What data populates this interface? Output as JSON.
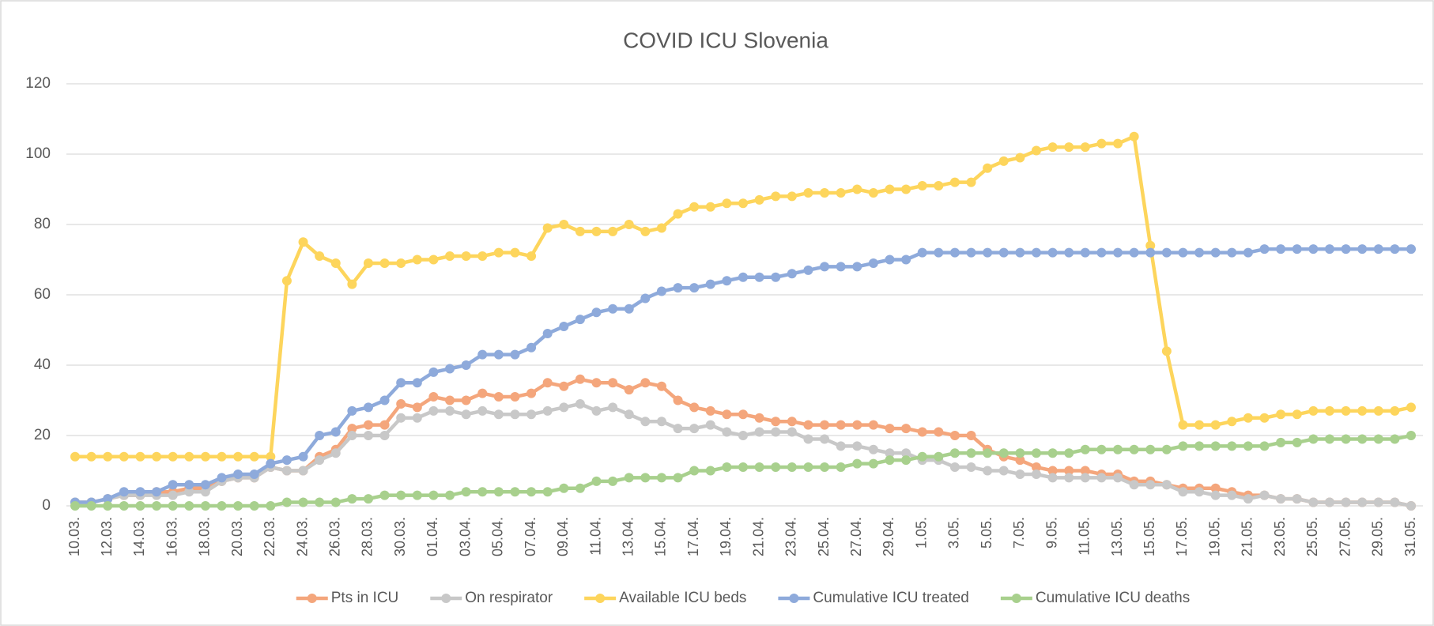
{
  "chart_data": {
    "type": "line",
    "title": "COVID ICU Slovenia",
    "categories": [
      "10.03.",
      null,
      "12.03.",
      null,
      "14.03.",
      null,
      "16.03.",
      null,
      "18.03.",
      null,
      "20.03.",
      null,
      "22.03.",
      null,
      "24.03.",
      null,
      "26.03.",
      null,
      "28.03.",
      null,
      "30.03.",
      null,
      "01.04.",
      null,
      "03.04.",
      null,
      "05.04.",
      null,
      "07.04.",
      null,
      "09.04.",
      null,
      "11.04.",
      null,
      "13.04.",
      null,
      "15.04.",
      null,
      "17.04.",
      null,
      "19.04.",
      null,
      "21.04.",
      null,
      "23.04.",
      null,
      "25.04.",
      null,
      "27.04.",
      null,
      "29.04.",
      null,
      "1.05.",
      null,
      "3.05.",
      null,
      "5.05.",
      null,
      "7.05.",
      null,
      "9.05.",
      null,
      "11.05.",
      null,
      "13.05.",
      null,
      "15.05.",
      null,
      "17.05.",
      null,
      "19.05.",
      null,
      "21.05.",
      null,
      "23.05.",
      null,
      "25.05.",
      null,
      "27.05.",
      null,
      "29.05.",
      null,
      "31.05."
    ],
    "series": [
      {
        "name": "Pts in ICU",
        "color": "#f4a67c",
        "values": [
          1,
          1,
          2,
          3,
          3,
          4,
          4,
          5,
          5,
          7,
          8,
          8,
          11,
          10,
          10,
          14,
          16,
          22,
          23,
          23,
          29,
          28,
          31,
          30,
          30,
          32,
          31,
          31,
          32,
          35,
          34,
          36,
          35,
          35,
          33,
          35,
          34,
          30,
          28,
          27,
          26,
          26,
          25,
          24,
          24,
          23,
          23,
          23,
          23,
          23,
          22,
          22,
          21,
          21,
          20,
          20,
          16,
          14,
          13,
          11,
          10,
          10,
          10,
          9,
          9,
          7,
          7,
          6,
          5,
          5,
          5,
          4,
          3,
          3,
          2,
          2,
          1,
          1,
          1,
          1,
          1,
          1,
          0
        ]
      },
      {
        "name": "On respirator",
        "color": "#c8c8c8",
        "values": [
          1,
          1,
          2,
          3,
          3,
          3,
          3,
          4,
          4,
          7,
          8,
          8,
          11,
          10,
          10,
          13,
          15,
          20,
          20,
          20,
          25,
          25,
          27,
          27,
          26,
          27,
          26,
          26,
          26,
          27,
          28,
          29,
          27,
          28,
          26,
          24,
          24,
          22,
          22,
          23,
          21,
          20,
          21,
          21,
          21,
          19,
          19,
          17,
          17,
          16,
          15,
          15,
          13,
          13,
          11,
          11,
          10,
          10,
          9,
          9,
          8,
          8,
          8,
          8,
          8,
          6,
          6,
          6,
          4,
          4,
          3,
          3,
          2,
          3,
          2,
          2,
          1,
          1,
          1,
          1,
          1,
          1,
          0
        ]
      },
      {
        "name": "Available ICU beds",
        "color": "#fdd55c",
        "values": [
          14,
          14,
          14,
          14,
          14,
          14,
          14,
          14,
          14,
          14,
          14,
          14,
          14,
          64,
          75,
          71,
          69,
          63,
          69,
          69,
          69,
          70,
          70,
          71,
          71,
          71,
          72,
          72,
          71,
          79,
          80,
          78,
          78,
          78,
          80,
          78,
          79,
          83,
          85,
          85,
          86,
          86,
          87,
          88,
          88,
          89,
          89,
          89,
          90,
          89,
          90,
          90,
          91,
          91,
          92,
          92,
          96,
          98,
          99,
          101,
          102,
          102,
          102,
          103,
          103,
          105,
          74,
          44,
          23,
          23,
          23,
          24,
          25,
          25,
          26,
          26,
          27,
          27,
          27,
          27,
          27,
          27,
          28
        ]
      },
      {
        "name": "Cumulative ICU treated",
        "color": "#8eaadb",
        "values": [
          1,
          1,
          2,
          4,
          4,
          4,
          6,
          6,
          6,
          8,
          9,
          9,
          12,
          13,
          14,
          20,
          21,
          27,
          28,
          30,
          35,
          35,
          38,
          39,
          40,
          43,
          43,
          43,
          45,
          49,
          51,
          53,
          55,
          56,
          56,
          59,
          61,
          62,
          62,
          63,
          64,
          65,
          65,
          65,
          66,
          67,
          68,
          68,
          68,
          69,
          70,
          70,
          72,
          72,
          72,
          72,
          72,
          72,
          72,
          72,
          72,
          72,
          72,
          72,
          72,
          72,
          72,
          72,
          72,
          72,
          72,
          72,
          72,
          73,
          73,
          73,
          73,
          73,
          73,
          73,
          73,
          73,
          73
        ]
      },
      {
        "name": "Cumulative ICU deaths",
        "color": "#a8d08d",
        "values": [
          0,
          0,
          0,
          0,
          0,
          0,
          0,
          0,
          0,
          0,
          0,
          0,
          0,
          1,
          1,
          1,
          1,
          2,
          2,
          3,
          3,
          3,
          3,
          3,
          4,
          4,
          4,
          4,
          4,
          4,
          5,
          5,
          7,
          7,
          8,
          8,
          8,
          8,
          10,
          10,
          11,
          11,
          11,
          11,
          11,
          11,
          11,
          11,
          12,
          12,
          13,
          13,
          14,
          14,
          15,
          15,
          15,
          15,
          15,
          15,
          15,
          15,
          16,
          16,
          16,
          16,
          16,
          16,
          17,
          17,
          17,
          17,
          17,
          17,
          18,
          18,
          19,
          19,
          19,
          19,
          19,
          19,
          20
        ]
      }
    ],
    "ylim": [
      0,
      120
    ],
    "yticks": [
      0,
      20,
      40,
      60,
      80,
      100,
      120
    ],
    "grid": true,
    "legend": "bottom"
  }
}
